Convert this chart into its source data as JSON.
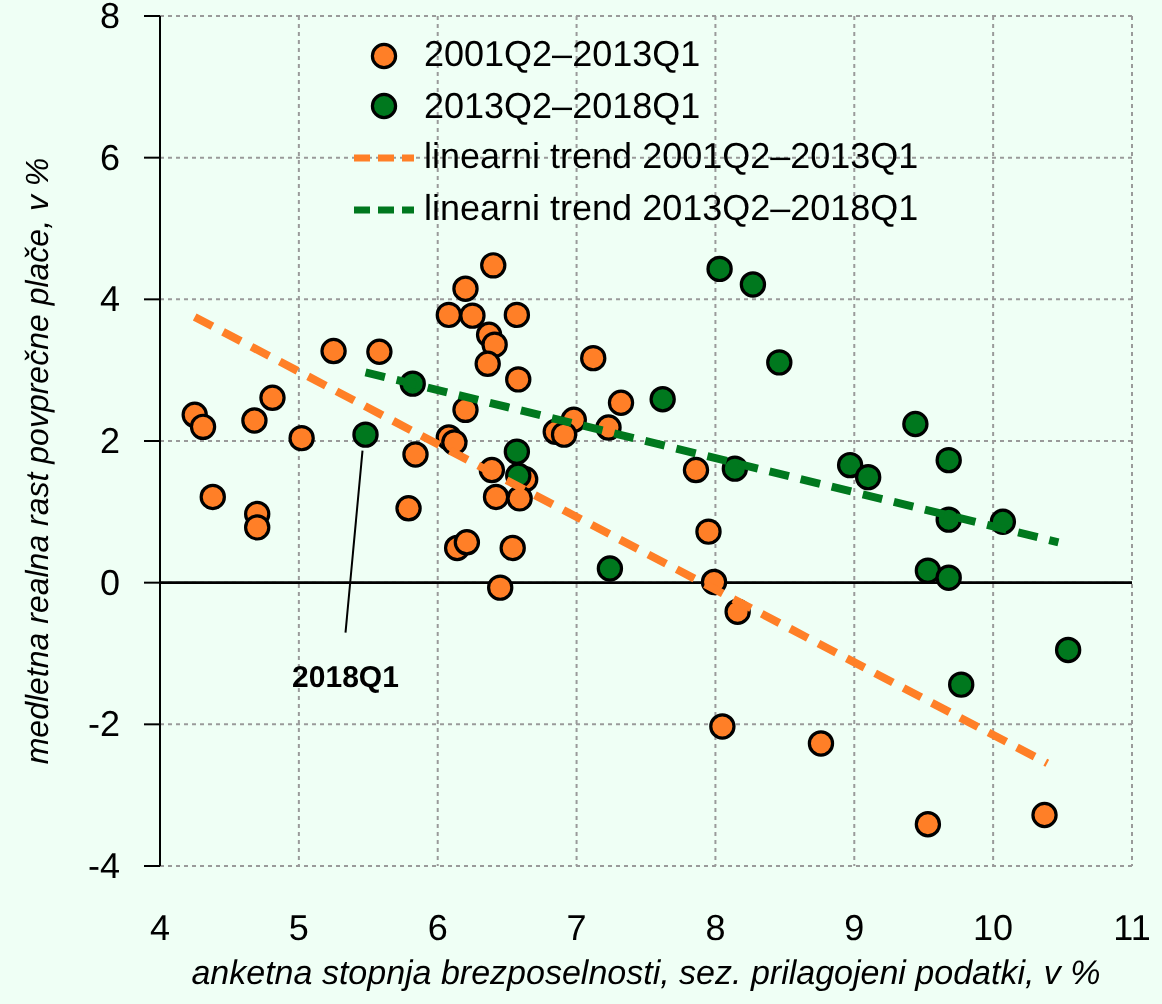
{
  "chart_data": {
    "type": "scatter",
    "xlabel": "anketna stopnja brezposelnosti, sez. prilagojeni podatki, v %",
    "ylabel": "medletna realna rast povprečne plače, v %",
    "xlim": [
      4,
      11
    ],
    "xticks": [
      4,
      5,
      6,
      7,
      8,
      9,
      10,
      11
    ],
    "ylim": [
      -4,
      8
    ],
    "yticks": [
      -4,
      -2,
      0,
      2,
      4,
      6,
      8
    ],
    "grid": true,
    "legend": "top",
    "ref_lines": [
      {
        "axis": "y",
        "value": 0,
        "color": "#000000",
        "line_style": "solid"
      }
    ],
    "annotations": [
      {
        "text": "2018Q1",
        "x": 5.48,
        "y": 2.09
      }
    ],
    "series": [
      {
        "name": "2001Q2–2013Q1",
        "type": "scatter",
        "marker": "circle",
        "color": "#ff7f27",
        "x": [
          4.25,
          4.31,
          4.38,
          4.68,
          4.81,
          4.7,
          4.7,
          5.02,
          5.25,
          5.58,
          5.84,
          5.79,
          6.08,
          6.12,
          6.2,
          6.08,
          6.2,
          6.25,
          6.4,
          6.37,
          6.41,
          6.36,
          6.57,
          6.58,
          6.39,
          6.63,
          6.42,
          6.59,
          6.14,
          6.21,
          6.54,
          6.45,
          7.12,
          7.32,
          6.98,
          6.85,
          6.91,
          7.23,
          7.86,
          7.95,
          7.99,
          8.16,
          8.05,
          8.76,
          9.53,
          10.37
        ],
        "values": [
          2.37,
          2.2,
          1.21,
          2.29,
          2.61,
          0.97,
          0.78,
          2.04,
          3.27,
          3.26,
          1.81,
          1.05,
          2.05,
          1.98,
          2.44,
          3.78,
          4.15,
          3.77,
          4.48,
          3.5,
          3.36,
          3.09,
          3.78,
          2.87,
          1.59,
          1.46,
          1.21,
          1.19,
          0.49,
          0.57,
          0.49,
          -0.07,
          3.17,
          2.54,
          2.3,
          2.13,
          2.09,
          2.19,
          1.59,
          0.72,
          0.01,
          -0.41,
          -2.03,
          -2.27,
          -3.41,
          -3.28
        ]
      },
      {
        "name": "2013Q2–2018Q1",
        "type": "scatter",
        "marker": "circle",
        "color": "#00781e",
        "x": [
          5.82,
          5.48,
          6.57,
          6.58,
          7.24,
          8.03,
          8.27,
          8.46,
          7.62,
          8.14,
          9.44,
          8.97,
          9.1,
          9.68,
          9.68,
          10.07,
          9.53,
          9.68,
          10.54,
          9.77
        ],
        "values": [
          2.81,
          2.09,
          1.85,
          1.51,
          0.2,
          4.43,
          4.21,
          3.11,
          2.59,
          1.61,
          2.24,
          1.66,
          1.49,
          1.73,
          0.89,
          0.86,
          0.17,
          0.07,
          -0.95,
          -1.44
        ]
      },
      {
        "name": "linearni trend 2001Q2–2013Q1",
        "type": "line",
        "line_style": "dashed",
        "color": "#ff7f27",
        "x": [
          4.25,
          10.39
        ],
        "values": [
          3.75,
          -2.55
        ]
      },
      {
        "name": "linearni trend 2013Q2–2018Q1",
        "type": "line",
        "line_style": "dashed",
        "color": "#00781e",
        "x": [
          5.48,
          10.47
        ],
        "values": [
          2.97,
          0.57
        ]
      }
    ]
  }
}
